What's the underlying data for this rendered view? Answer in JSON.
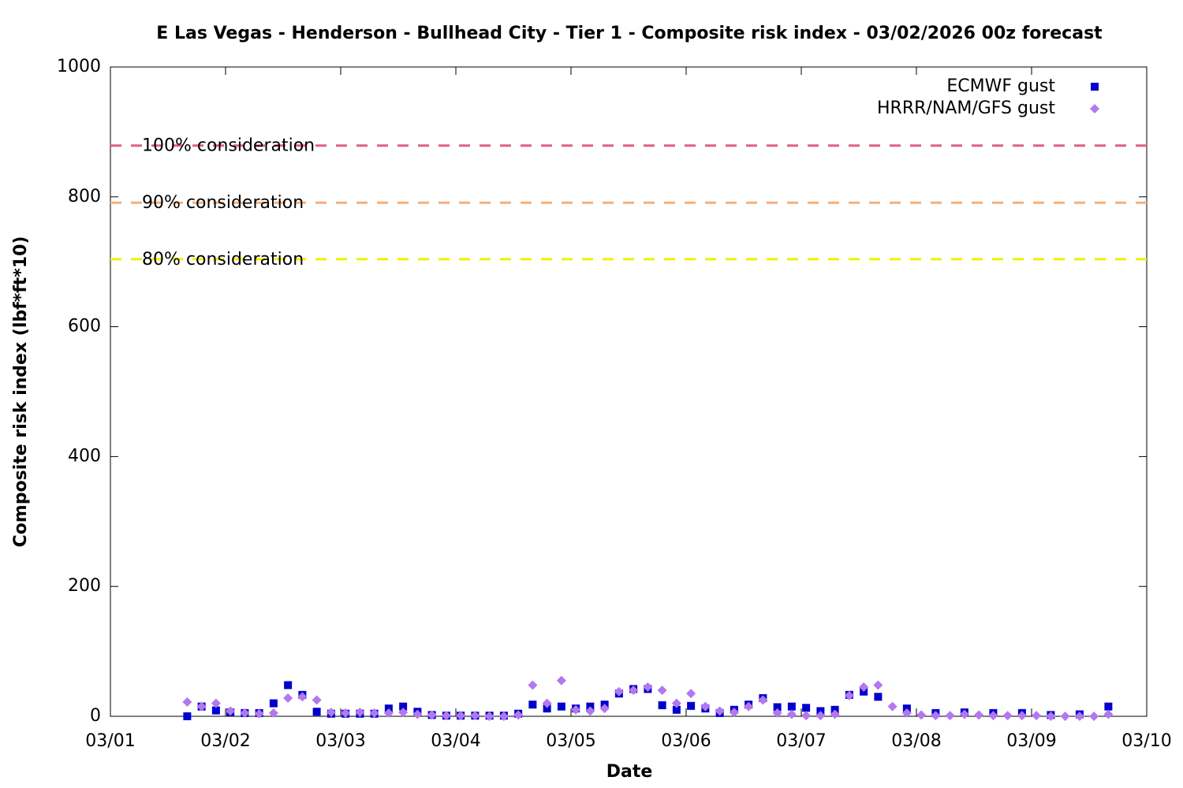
{
  "chart_data": {
    "type": "scatter",
    "title": "E Las Vegas - Henderson - Bullhead City - Tier 1 - Composite risk index - 03/02/2026 00z forecast",
    "xlabel": "Date",
    "ylabel": "Composite risk index (lbf*ft*10)",
    "xlim": [
      0,
      9
    ],
    "ylim": [
      0,
      1000
    ],
    "xticks": [
      {
        "value": 0,
        "label": "03/01"
      },
      {
        "value": 1,
        "label": "03/02"
      },
      {
        "value": 2,
        "label": "03/03"
      },
      {
        "value": 3,
        "label": "03/04"
      },
      {
        "value": 4,
        "label": "03/05"
      },
      {
        "value": 5,
        "label": "03/06"
      },
      {
        "value": 6,
        "label": "03/07"
      },
      {
        "value": 7,
        "label": "03/08"
      },
      {
        "value": 8,
        "label": "03/09"
      },
      {
        "value": 9,
        "label": "03/10"
      }
    ],
    "yticks": [
      0,
      200,
      400,
      600,
      800,
      1000
    ],
    "legend": "top-right",
    "thresholds": [
      {
        "label": "100% consideration",
        "value": 879,
        "color": "#e0607e"
      },
      {
        "label": "90% consideration",
        "value": 791,
        "color": "#f5b07a"
      },
      {
        "label": "80% consideration",
        "value": 704,
        "color": "#f0f000"
      }
    ],
    "series": [
      {
        "name": "ECMWF gust",
        "color": "#0000cc",
        "marker": "square",
        "x": [
          0.667,
          0.792,
          0.917,
          1.042,
          1.167,
          1.292,
          1.417,
          1.542,
          1.667,
          1.792,
          1.917,
          2.042,
          2.167,
          2.292,
          2.417,
          2.542,
          2.667,
          2.792,
          2.917,
          3.042,
          3.167,
          3.292,
          3.417,
          3.542,
          3.667,
          3.792,
          3.917,
          4.042,
          4.167,
          4.292,
          4.417,
          4.542,
          4.667,
          4.792,
          4.917,
          5.042,
          5.167,
          5.292,
          5.417,
          5.542,
          5.667,
          5.792,
          5.917,
          6.042,
          6.167,
          6.292,
          6.417,
          6.542,
          6.667,
          6.917,
          7.167,
          7.417,
          7.667,
          7.917,
          8.167,
          8.417,
          8.667
        ],
        "values": [
          0,
          15,
          9,
          6,
          5,
          5,
          20,
          48,
          33,
          7,
          4,
          4,
          4,
          4,
          12,
          15,
          7,
          2,
          1,
          1,
          1,
          1,
          1,
          4,
          18,
          12,
          15,
          12,
          15,
          18,
          35,
          42,
          42,
          17,
          10,
          16,
          12,
          5,
          10,
          18,
          28,
          14,
          15,
          13,
          8,
          10,
          33,
          38,
          30,
          12,
          5,
          6,
          5,
          5,
          2,
          3,
          15
        ]
      },
      {
        "name": "HRRR/NAM/GFS gust",
        "color": "#b377f0",
        "marker": "diamond",
        "x": [
          0.667,
          0.792,
          0.917,
          1.042,
          1.167,
          1.292,
          1.417,
          1.542,
          1.667,
          1.792,
          1.917,
          2.042,
          2.167,
          2.292,
          2.417,
          2.542,
          2.667,
          2.792,
          2.917,
          3.042,
          3.167,
          3.292,
          3.417,
          3.542,
          3.667,
          3.792,
          3.917,
          4.042,
          4.167,
          4.292,
          4.417,
          4.542,
          4.667,
          4.792,
          4.917,
          5.042,
          5.167,
          5.292,
          5.417,
          5.542,
          5.667,
          5.792,
          5.917,
          6.042,
          6.167,
          6.292,
          6.417,
          6.542,
          6.667,
          6.792,
          6.917,
          7.042,
          7.167,
          7.292,
          7.417,
          7.542,
          7.667,
          7.792,
          7.917,
          8.042,
          8.167,
          8.292,
          8.417,
          8.542,
          8.667
        ],
        "values": [
          22,
          15,
          20,
          8,
          5,
          4,
          5,
          28,
          30,
          25,
          6,
          5,
          6,
          5,
          5,
          6,
          3,
          2,
          1,
          1,
          1,
          0,
          0,
          2,
          48,
          20,
          55,
          10,
          8,
          12,
          38,
          40,
          45,
          40,
          20,
          35,
          15,
          8,
          6,
          15,
          25,
          5,
          3,
          1,
          1,
          3,
          32,
          45,
          48,
          15,
          5,
          2,
          1,
          1,
          3,
          2,
          1,
          1,
          1,
          1,
          0,
          0,
          0,
          0,
          3
        ]
      }
    ]
  }
}
